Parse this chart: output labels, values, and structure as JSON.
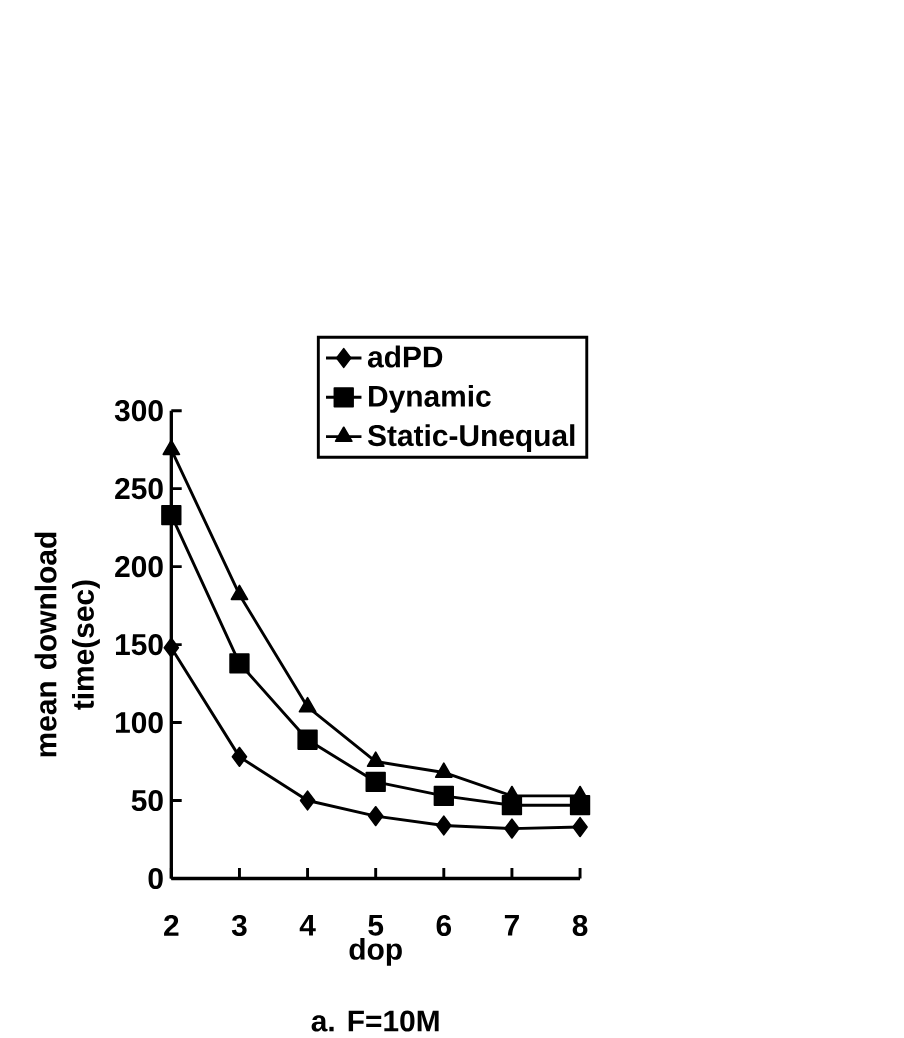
{
  "chart_data": {
    "type": "line",
    "xlabel": "dop",
    "ylabel": "mean download time(sec)",
    "annotations": [
      "a. F=10M"
    ],
    "x": [
      2,
      3,
      4,
      5,
      6,
      7,
      8
    ],
    "xlim": [
      2,
      8
    ],
    "xticks": [
      2,
      3,
      4,
      5,
      6,
      7,
      8
    ],
    "ylim": [
      0,
      300
    ],
    "yticks": [
      0,
      50,
      100,
      150,
      200,
      250,
      300
    ],
    "legend": "top right",
    "grid": false,
    "line_style": "solid",
    "series": [
      {
        "name": "adPD",
        "color": "#000000",
        "marker": "diamond",
        "values": [
          148,
          78,
          50,
          40,
          34,
          32,
          33
        ]
      },
      {
        "name": "Dynamic",
        "color": "#000000",
        "marker": "square",
        "values": [
          233,
          138,
          89,
          62,
          53,
          47,
          47
        ]
      },
      {
        "name": "Static-Unequal",
        "color": "#000000",
        "marker": "triangle",
        "values": [
          275,
          182,
          110,
          75,
          68,
          53,
          53
        ]
      }
    ]
  }
}
